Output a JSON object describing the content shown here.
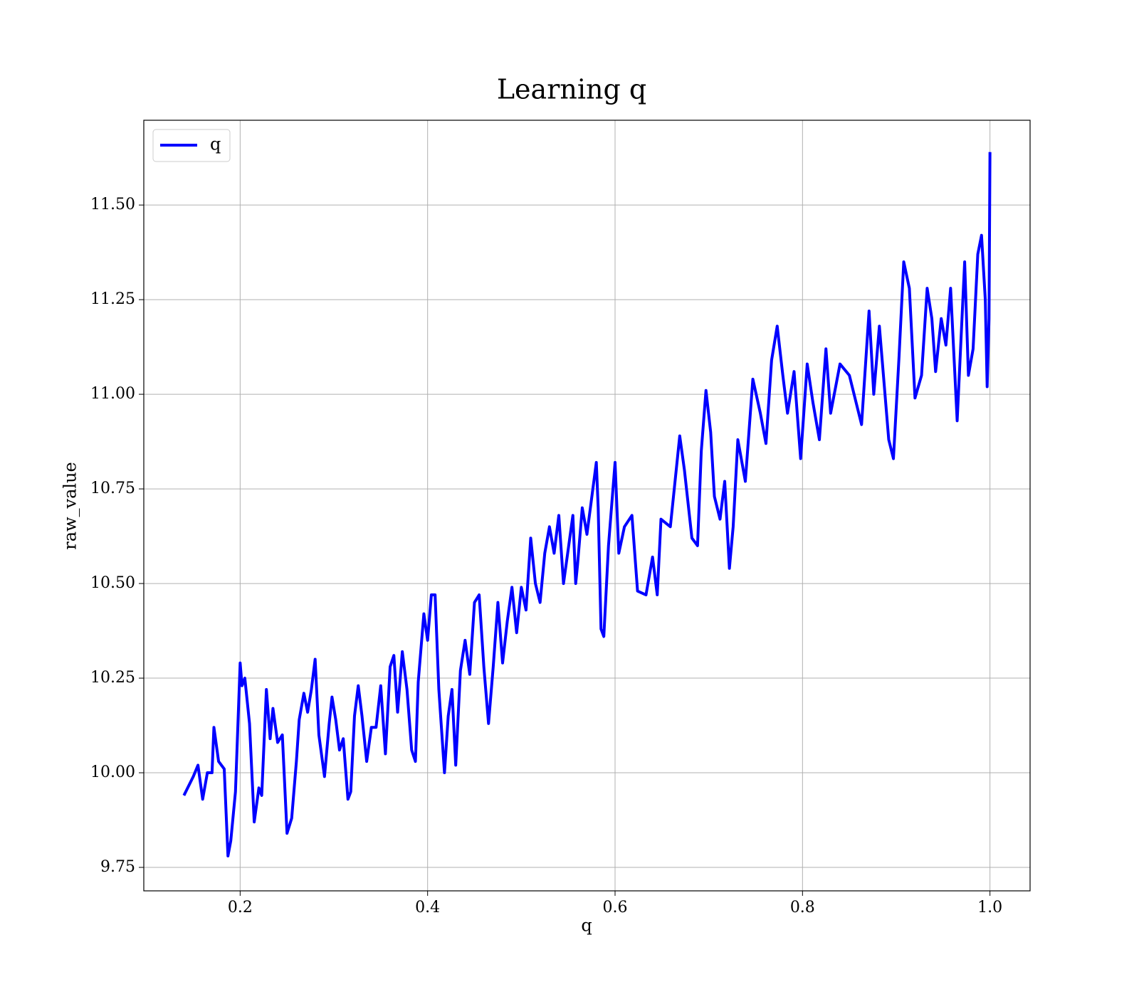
{
  "chart_data": {
    "type": "line",
    "title": "Learning q",
    "x_label": "q",
    "y_label": "raw_value",
    "xlim": [
      0.0972,
      1.0428
    ],
    "ylim": [
      9.688,
      11.724
    ],
    "xticks": [
      0.2,
      0.4,
      0.6,
      0.8,
      {
        "value": 1.0,
        "label": "1.0"
      }
    ],
    "yticks": [
      9.75,
      {
        "value": 10.0,
        "label": "10.00"
      },
      10.25,
      {
        "value": 10.5,
        "label": "10.50"
      },
      10.75,
      {
        "value": 11.0,
        "label": "11.00"
      },
      11.25,
      {
        "value": 11.5,
        "label": "11.50"
      }
    ],
    "grid": true,
    "legend": "upper left",
    "x": [
      0.14,
      0.15,
      0.155,
      0.16,
      0.165,
      0.17,
      0.172,
      0.177,
      0.183,
      0.187,
      0.19,
      0.195,
      0.2,
      0.202,
      0.205,
      0.21,
      0.215,
      0.22,
      0.223,
      0.228,
      0.232,
      0.235,
      0.24,
      0.245,
      0.25,
      0.255,
      0.26,
      0.263,
      0.268,
      0.272,
      0.276,
      0.28,
      0.284,
      0.29,
      0.295,
      0.298,
      0.302,
      0.306,
      0.31,
      0.315,
      0.318,
      0.322,
      0.326,
      0.33,
      0.335,
      0.34,
      0.345,
      0.35,
      0.355,
      0.36,
      0.364,
      0.368,
      0.373,
      0.378,
      0.383,
      0.387,
      0.39,
      0.396,
      0.4,
      0.404,
      0.408,
      0.412,
      0.418,
      0.422,
      0.426,
      0.43,
      0.435,
      0.44,
      0.445,
      0.45,
      0.455,
      0.46,
      0.465,
      0.47,
      0.475,
      0.48,
      0.485,
      0.49,
      0.495,
      0.5,
      0.505,
      0.51,
      0.515,
      0.52,
      0.525,
      0.53,
      0.535,
      0.54,
      0.545,
      0.555,
      0.558,
      0.56,
      0.565,
      0.57,
      0.58,
      0.582,
      0.585,
      0.588,
      0.593,
      0.6,
      0.604,
      0.61,
      0.618,
      0.624,
      0.633,
      0.64,
      0.645,
      0.649,
      0.659,
      0.669,
      0.674,
      0.682,
      0.688,
      0.692,
      0.697,
      0.702,
      0.706,
      0.712,
      0.717,
      0.722,
      0.726,
      0.731,
      0.739,
      0.747,
      0.755,
      0.761,
      0.767,
      0.773,
      0.779,
      0.784,
      0.791,
      0.798,
      0.805,
      0.811,
      0.818,
      0.825,
      0.83,
      0.84,
      0.85,
      0.863,
      0.871,
      0.876,
      0.882,
      0.892,
      0.897,
      0.903,
      0.908,
      0.914,
      0.92,
      0.927,
      0.933,
      0.938,
      0.942,
      0.948,
      0.953,
      0.958,
      0.965,
      0.973,
      0.977,
      0.982,
      0.987,
      0.991,
      0.995,
      0.997,
      0.999,
      1.0
    ],
    "series": [
      {
        "name": "q",
        "color": "#0000ff",
        "values": [
          9.94,
          9.99,
          10.02,
          9.93,
          10.0,
          10.0,
          10.12,
          10.03,
          10.01,
          9.78,
          9.82,
          9.95,
          10.29,
          10.23,
          10.25,
          10.13,
          9.87,
          9.96,
          9.94,
          10.22,
          10.09,
          10.17,
          10.08,
          10.1,
          9.84,
          9.88,
          10.03,
          10.14,
          10.21,
          10.16,
          10.22,
          10.3,
          10.1,
          9.99,
          10.13,
          10.2,
          10.14,
          10.06,
          10.09,
          9.93,
          9.95,
          10.15,
          10.23,
          10.15,
          10.03,
          10.12,
          10.12,
          10.23,
          10.05,
          10.28,
          10.31,
          10.16,
          10.32,
          10.22,
          10.06,
          10.03,
          10.24,
          10.42,
          10.35,
          10.47,
          10.47,
          10.22,
          10.0,
          10.15,
          10.22,
          10.02,
          10.27,
          10.35,
          10.26,
          10.45,
          10.47,
          10.28,
          10.13,
          10.28,
          10.45,
          10.29,
          10.4,
          10.49,
          10.37,
          10.49,
          10.43,
          10.62,
          10.5,
          10.45,
          10.58,
          10.65,
          10.58,
          10.68,
          10.5,
          10.68,
          10.5,
          10.55,
          10.7,
          10.63,
          10.82,
          10.7,
          10.38,
          10.36,
          10.6,
          10.82,
          10.58,
          10.65,
          10.68,
          10.48,
          10.47,
          10.57,
          10.47,
          10.67,
          10.65,
          10.89,
          10.8,
          10.62,
          10.6,
          10.85,
          11.01,
          10.9,
          10.73,
          10.67,
          10.77,
          10.54,
          10.65,
          10.88,
          10.77,
          11.04,
          10.95,
          10.87,
          11.09,
          11.18,
          11.05,
          10.95,
          11.06,
          10.83,
          11.08,
          10.98,
          10.88,
          11.12,
          10.95,
          11.08,
          11.05,
          10.92,
          11.22,
          11.0,
          11.18,
          10.88,
          10.83,
          11.1,
          11.35,
          11.28,
          10.99,
          11.05,
          11.28,
          11.2,
          11.06,
          11.2,
          11.13,
          11.28,
          10.93,
          11.35,
          11.05,
          11.12,
          11.37,
          11.42,
          11.25,
          11.02,
          11.2,
          11.64
        ]
      }
    ]
  }
}
